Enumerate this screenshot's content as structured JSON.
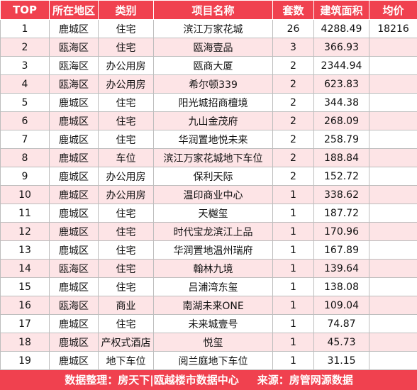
{
  "headers": [
    "TOP",
    "所在地区",
    "类别",
    "项目名称",
    "套数",
    "建筑面积",
    "均价"
  ],
  "rows": [
    {
      "top": "1",
      "region": "鹿城区",
      "category": "住宅",
      "project": "滨江万家花城",
      "units": "26",
      "area": "4288.49",
      "price": "18216"
    },
    {
      "top": "2",
      "region": "瓯海区",
      "category": "住宅",
      "project": "瓯海壹品",
      "units": "3",
      "area": "366.93",
      "price": ""
    },
    {
      "top": "3",
      "region": "瓯海区",
      "category": "办公用房",
      "project": "瓯商大厦",
      "units": "2",
      "area": "2344.94",
      "price": ""
    },
    {
      "top": "4",
      "region": "瓯海区",
      "category": "办公用房",
      "project": "希尔顿339",
      "units": "2",
      "area": "623.83",
      "price": ""
    },
    {
      "top": "5",
      "region": "鹿城区",
      "category": "住宅",
      "project": "阳光城招商檀境",
      "units": "2",
      "area": "344.38",
      "price": ""
    },
    {
      "top": "6",
      "region": "鹿城区",
      "category": "住宅",
      "project": "九山金茂府",
      "units": "2",
      "area": "268.09",
      "price": ""
    },
    {
      "top": "7",
      "region": "鹿城区",
      "category": "住宅",
      "project": "华润置地悦未来",
      "units": "2",
      "area": "258.79",
      "price": ""
    },
    {
      "top": "8",
      "region": "鹿城区",
      "category": "车位",
      "project": "滨江万家花城地下车位",
      "units": "2",
      "area": "188.84",
      "price": ""
    },
    {
      "top": "9",
      "region": "鹿城区",
      "category": "办公用房",
      "project": "保利天际",
      "units": "2",
      "area": "152.72",
      "price": ""
    },
    {
      "top": "10",
      "region": "鹿城区",
      "category": "办公用房",
      "project": "温印商业中心",
      "units": "1",
      "area": "338.62",
      "price": ""
    },
    {
      "top": "11",
      "region": "鹿城区",
      "category": "住宅",
      "project": "天樾玺",
      "units": "1",
      "area": "187.72",
      "price": ""
    },
    {
      "top": "12",
      "region": "鹿城区",
      "category": "住宅",
      "project": "时代宝龙滨江上品",
      "units": "1",
      "area": "170.96",
      "price": ""
    },
    {
      "top": "13",
      "region": "鹿城区",
      "category": "住宅",
      "project": "华润置地温州瑞府",
      "units": "1",
      "area": "167.89",
      "price": ""
    },
    {
      "top": "14",
      "region": "瓯海区",
      "category": "住宅",
      "project": "翰林九境",
      "units": "1",
      "area": "139.64",
      "price": ""
    },
    {
      "top": "15",
      "region": "鹿城区",
      "category": "住宅",
      "project": "吕浦湾东玺",
      "units": "1",
      "area": "138.08",
      "price": ""
    },
    {
      "top": "16",
      "region": "瓯海区",
      "category": "商业",
      "project": "南湖未来ONE",
      "units": "1",
      "area": "109.04",
      "price": ""
    },
    {
      "top": "17",
      "region": "鹿城区",
      "category": "住宅",
      "project": "未来城壹号",
      "units": "1",
      "area": "74.87",
      "price": ""
    },
    {
      "top": "18",
      "region": "鹿城区",
      "category": "产权式酒店",
      "project": "悦玺",
      "units": "1",
      "area": "45.73",
      "price": ""
    },
    {
      "top": "19",
      "region": "鹿城区",
      "category": "地下车位",
      "project": "阅兰庭地下车位",
      "units": "1",
      "area": "31.15",
      "price": ""
    }
  ],
  "footer": {
    "compiled_by": "数据整理：房天下|瓯越楼市数据中心",
    "source": "来源：房管网源数据"
  },
  "colors": {
    "header_bg": "#f0414f",
    "stripe_bg": "#fde4e6",
    "grid_border": "#bdbdbd"
  }
}
